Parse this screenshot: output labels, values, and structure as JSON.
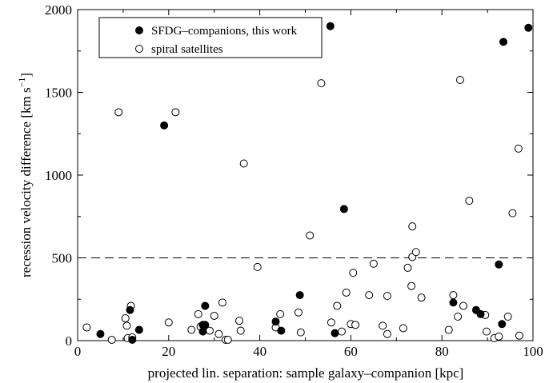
{
  "chart_data": {
    "type": "scatter",
    "xlabel": "projected lin. separation: sample galaxy–companion [kpc]",
    "ylabel": "recession velocity difference [km s",
    "ylabel_exp": "−1",
    "ylabel_close": "]",
    "xlim": [
      0,
      100
    ],
    "ylim": [
      0,
      2000
    ],
    "xticks": [
      "0",
      "20",
      "40",
      "60",
      "80",
      "100"
    ],
    "yticks": [
      "0",
      "500",
      "1000",
      "1500",
      "2000"
    ],
    "grid": false,
    "legend_position": "top-left",
    "reference_line": {
      "y": 500,
      "style": "dashed"
    },
    "series": [
      {
        "name": "SFDG–companions, this work",
        "marker": "filled-circle",
        "points": [
          [
            5,
            40
          ],
          [
            11.5,
            185
          ],
          [
            12,
            5
          ],
          [
            13.5,
            65
          ],
          [
            19,
            1300
          ],
          [
            27.5,
            55
          ],
          [
            27.5,
            95
          ],
          [
            28,
            210
          ],
          [
            28,
            95
          ],
          [
            43.5,
            115
          ],
          [
            44.7,
            60
          ],
          [
            48.8,
            275
          ],
          [
            55.5,
            1900
          ],
          [
            56.5,
            45
          ],
          [
            58.5,
            795
          ],
          [
            82.5,
            230
          ],
          [
            87.5,
            185
          ],
          [
            88.5,
            160
          ],
          [
            92.5,
            460
          ],
          [
            93.5,
            1805
          ],
          [
            93.2,
            100
          ],
          [
            99,
            1890
          ]
        ]
      },
      {
        "name": "spiral satellites",
        "marker": "open-circle",
        "points": [
          [
            2,
            80
          ],
          [
            7.5,
            5
          ],
          [
            9,
            1380
          ],
          [
            10.5,
            135
          ],
          [
            10.8,
            90
          ],
          [
            11,
            15
          ],
          [
            11.7,
            210
          ],
          [
            12,
            20
          ],
          [
            20,
            110
          ],
          [
            21.5,
            1380
          ],
          [
            25,
            65
          ],
          [
            26.5,
            160
          ],
          [
            27,
            85
          ],
          [
            29,
            60
          ],
          [
            30,
            150
          ],
          [
            31,
            40
          ],
          [
            31.8,
            230
          ],
          [
            32.5,
            5
          ],
          [
            33,
            5
          ],
          [
            35.5,
            120
          ],
          [
            35.8,
            60
          ],
          [
            36.5,
            1070
          ],
          [
            39.5,
            445
          ],
          [
            43.5,
            80
          ],
          [
            44.5,
            160
          ],
          [
            48.5,
            170
          ],
          [
            49,
            50
          ],
          [
            51,
            635
          ],
          [
            53.5,
            1555
          ],
          [
            55.7,
            110
          ],
          [
            57,
            210
          ],
          [
            58,
            55
          ],
          [
            59,
            290
          ],
          [
            60,
            100
          ],
          [
            60.5,
            410
          ],
          [
            61,
            95
          ],
          [
            64,
            275
          ],
          [
            65,
            465
          ],
          [
            67,
            90
          ],
          [
            68,
            40
          ],
          [
            68,
            270
          ],
          [
            71.5,
            75
          ],
          [
            72.5,
            440
          ],
          [
            73.3,
            330
          ],
          [
            73.5,
            690
          ],
          [
            73.5,
            505
          ],
          [
            74.3,
            535
          ],
          [
            75.5,
            260
          ],
          [
            81.5,
            65
          ],
          [
            82.5,
            275
          ],
          [
            83.5,
            145
          ],
          [
            84,
            1575
          ],
          [
            84.7,
            210
          ],
          [
            86,
            845
          ],
          [
            89.5,
            155
          ],
          [
            89.8,
            55
          ],
          [
            91.5,
            15
          ],
          [
            92.5,
            25
          ],
          [
            94.5,
            145
          ],
          [
            95.5,
            770
          ],
          [
            96.8,
            1160
          ],
          [
            97,
            30
          ]
        ]
      }
    ]
  }
}
